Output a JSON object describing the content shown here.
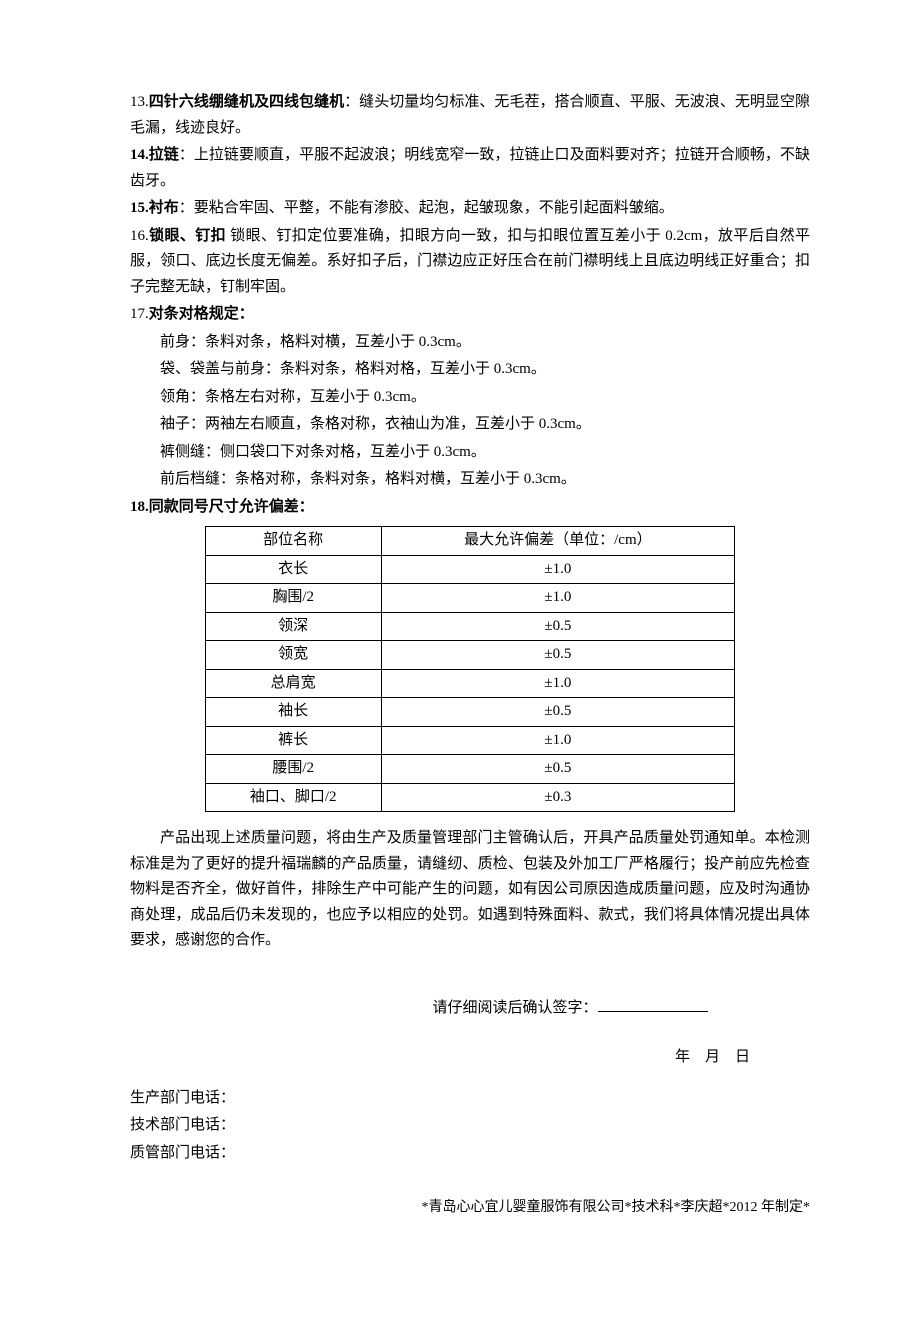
{
  "items": {
    "i13": {
      "num": "13.",
      "title": "四针六线绷缝机及四线包缝机",
      "text": "：缝头切量均匀标准、无毛茬，搭合顺直、平服、无波浪、无明显空隙毛漏，线迹良好。"
    },
    "i14": {
      "num": "14.",
      "title": "拉链",
      "text": "：上拉链要顺直，平服不起波浪；明线宽窄一致，拉链止口及面料要对齐；拉链开合顺畅，不缺齿牙。"
    },
    "i15": {
      "num": "15.",
      "title": "衬布",
      "text": "：要粘合牢固、平整，不能有渗胶、起泡，起皱现象，不能引起面料皱缩。"
    },
    "i16": {
      "num": "16.",
      "title": "锁眼、钉扣",
      "text": " 锁眼、钉扣定位要准确，扣眼方向一致，扣与扣眼位置互差小于 0.2cm，放平后自然平服，领口、底边长度无偏差。系好扣子后，门襟边应正好压合在前门襟明线上且底边明线正好重合；扣子完整无缺，钉制牢固。"
    },
    "i17": {
      "num": "17.",
      "title": "对条对格规定："
    },
    "i18": {
      "num": "18.",
      "title": "同款同号尺寸允许偏差："
    }
  },
  "rules17": [
    "前身：条料对条，格料对横，互差小于 0.3cm。",
    "袋、袋盖与前身：条料对条，格料对格，互差小于 0.3cm。",
    "领角：条格左右对称，互差小于 0.3cm。",
    "袖子：两袖左右顺直，条格对称，衣袖山为准，互差小于 0.3cm。",
    "裤侧缝：侧口袋口下对条对格，互差小于 0.3cm。",
    "前后档缝：条格对称，条料对条，格料对横，互差小于 0.3cm。"
  ],
  "table": {
    "headers": [
      "部位名称",
      "最大允许偏差（单位：/cm）"
    ],
    "rows": [
      [
        "衣长",
        "±1.0"
      ],
      [
        "胸围/2",
        "±1.0"
      ],
      [
        "领深",
        "±0.5"
      ],
      [
        "领宽",
        "±0.5"
      ],
      [
        "总肩宽",
        "±1.0"
      ],
      [
        "袖长",
        "±0.5"
      ],
      [
        "裤长",
        "±1.0"
      ],
      [
        "腰围/2",
        "±0.5"
      ],
      [
        "袖口、脚口/2",
        "±0.3"
      ]
    ]
  },
  "closing": "产品出现上述质量问题，将由生产及质量管理部门主管确认后，开具产品质量处罚通知单。本检测标准是为了更好的提升福瑞麟的产品质量，请缝纫、质检、包装及外加工厂严格履行；投产前应先检查物料是否齐全，做好首件，排除生产中可能产生的问题，如有因公司原因造成质量问题，应及时沟通协商处理，成品后仍未发现的，也应予以相应的处罚。如遇到特殊面料、款式，我们将具体情况提出具体要求，感谢您的合作。",
  "sign": "请仔细阅读后确认签字：",
  "date": "年　月　日",
  "phones": {
    "p1": "生产部门电话：",
    "p2": "技术部门电话：",
    "p3": "质管部门电话："
  },
  "footer": "*青岛心心宜儿婴童服饰有限公司*技术科*李庆超*2012 年制定*"
}
